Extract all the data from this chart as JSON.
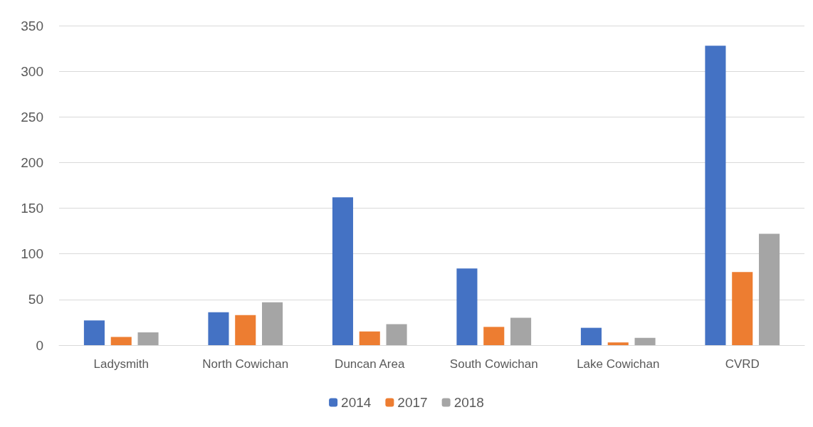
{
  "chart_data": {
    "type": "bar",
    "categories": [
      "Ladysmith",
      "North Cowichan",
      "Duncan Area",
      "South Cowichan",
      "Lake Cowichan",
      "CVRD"
    ],
    "series": [
      {
        "name": "2014",
        "color": "#4472c4",
        "values": [
          27,
          36,
          162,
          84,
          19,
          328
        ]
      },
      {
        "name": "2017",
        "color": "#ed7d31",
        "values": [
          9,
          33,
          15,
          20,
          3,
          80
        ]
      },
      {
        "name": "2018",
        "color": "#a5a5a5",
        "values": [
          14,
          47,
          23,
          30,
          8,
          122
        ]
      }
    ],
    "ylim": [
      0,
      350
    ],
    "yticks": [
      0,
      50,
      100,
      150,
      200,
      250,
      300,
      350
    ],
    "grid": "y",
    "legend": "bottom"
  }
}
